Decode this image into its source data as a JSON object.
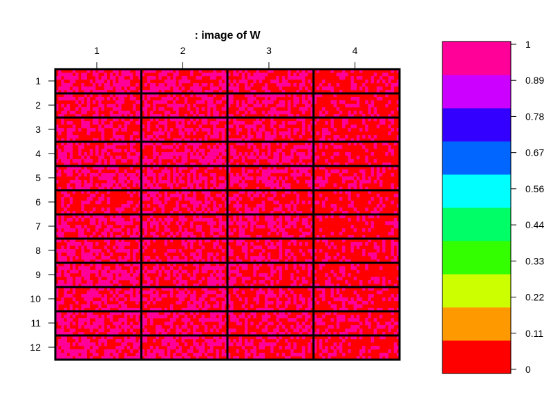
{
  "chart_data": {
    "type": "heatmap",
    "title": ": image of W",
    "column_labels": [
      "1",
      "2",
      "3",
      "4"
    ],
    "row_labels": [
      "1",
      "2",
      "3",
      "4",
      "5",
      "6",
      "7",
      "8",
      "9",
      "10",
      "11",
      "12"
    ],
    "cells_per_block": {
      "columns": 30,
      "rows": 7
    },
    "value_range": [
      0,
      1
    ],
    "observed_values": [
      0,
      1
    ],
    "block_fraction_high": [
      [
        0.55,
        0.5,
        0.45,
        0.25
      ],
      [
        0.5,
        0.45,
        0.5,
        0.2
      ],
      [
        0.45,
        0.45,
        0.45,
        0.3
      ],
      [
        0.5,
        0.55,
        0.45,
        0.25
      ],
      [
        0.55,
        0.5,
        0.45,
        0.3
      ],
      [
        0.25,
        0.5,
        0.35,
        0.25
      ],
      [
        0.5,
        0.4,
        0.45,
        0.25
      ],
      [
        0.45,
        0.35,
        0.4,
        0.25
      ],
      [
        0.5,
        0.45,
        0.4,
        0.3
      ],
      [
        0.5,
        0.45,
        0.45,
        0.3
      ],
      [
        0.5,
        0.45,
        0.4,
        0.35
      ],
      [
        0.6,
        0.5,
        0.45,
        0.25
      ]
    ],
    "colorbar": {
      "ticks": [
        "0",
        "0.11",
        "0.22",
        "0.33",
        "0.44",
        "0.56",
        "0.67",
        "0.78",
        "0.89",
        "1"
      ],
      "colors": [
        "#FF0000",
        "#FF9900",
        "#CCFF00",
        "#33FF00",
        "#00FF66",
        "#00FFFF",
        "#0066FF",
        "#3300FF",
        "#CC00FF",
        "#FF0099"
      ]
    },
    "grid": true
  }
}
